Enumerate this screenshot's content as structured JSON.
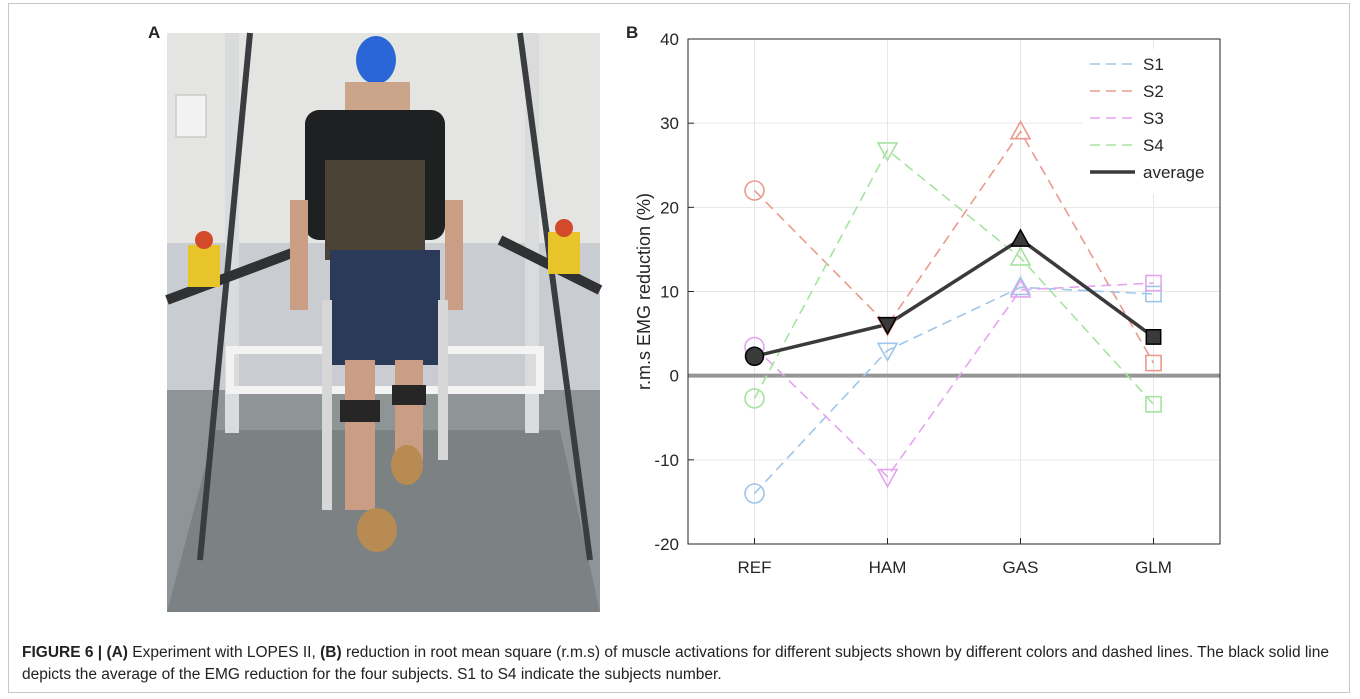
{
  "panels": {
    "a": "A",
    "b": "B"
  },
  "chart_data": {
    "type": "line",
    "ylabel": "r.m.s EMG reduction (%)",
    "categories": [
      "REF",
      "HAM",
      "GAS",
      "GLM"
    ],
    "markers": [
      "circle",
      "triangle-down",
      "triangle-up",
      "square"
    ],
    "ylim": [
      -20,
      40
    ],
    "yticks": [
      -20,
      -10,
      0,
      10,
      20,
      30,
      40
    ],
    "grid": true,
    "legend": "top-right",
    "series": [
      {
        "name": "S1",
        "color": "#9fc6ea",
        "style": "dashed",
        "values": [
          -14,
          3,
          10.5,
          9.7
        ]
      },
      {
        "name": "S2",
        "color": "#eb9a8d",
        "style": "dashed",
        "values": [
          22,
          6,
          29,
          1.5
        ]
      },
      {
        "name": "S3",
        "color": "#e3a6ee",
        "style": "dashed",
        "values": [
          3.4,
          -12,
          10.2,
          11
        ]
      },
      {
        "name": "S4",
        "color": "#a6e3a0",
        "style": "dashed",
        "values": [
          -2.7,
          26.8,
          14,
          -3.4
        ]
      },
      {
        "name": "average",
        "color": "#3a3a3a",
        "style": "solid",
        "values": [
          2.3,
          6.1,
          16.2,
          4.6
        ]
      }
    ]
  },
  "caption": {
    "label": "FIGURE 6 |",
    "a_label": "(A)",
    "a_text": "Experiment with LOPES II,",
    "b_label": "(B)",
    "b_text": "reduction in root mean square (r.m.s) of muscle activations for different subjects shown by different colors and dashed lines. The black solid line depicts the average of the EMG reduction for the four subjects. S1 to S4 indicate the subjects number."
  }
}
